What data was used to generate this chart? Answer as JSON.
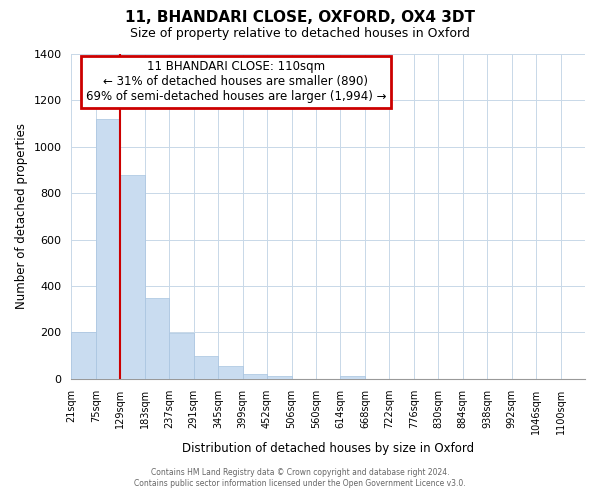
{
  "title": "11, BHANDARI CLOSE, OXFORD, OX4 3DT",
  "subtitle": "Size of property relative to detached houses in Oxford",
  "xlabel": "Distribution of detached houses by size in Oxford",
  "ylabel": "Number of detached properties",
  "bar_labels": [
    "21sqm",
    "75sqm",
    "129sqm",
    "183sqm",
    "237sqm",
    "291sqm",
    "345sqm",
    "399sqm",
    "452sqm",
    "506sqm",
    "560sqm",
    "614sqm",
    "668sqm",
    "722sqm",
    "776sqm",
    "830sqm",
    "884sqm",
    "938sqm",
    "992sqm",
    "1046sqm",
    "1100sqm"
  ],
  "bar_heights": [
    200,
    1120,
    880,
    350,
    195,
    100,
    55,
    20,
    12,
    0,
    0,
    10,
    0,
    0,
    0,
    0,
    0,
    0,
    0,
    0,
    0
  ],
  "bar_color": "#c9dcf0",
  "bar_edge_color": "#a8c4e0",
  "ylim": [
    0,
    1400
  ],
  "yticks": [
    0,
    200,
    400,
    600,
    800,
    1000,
    1200,
    1400
  ],
  "annotation_title": "11 BHANDARI CLOSE: 110sqm",
  "annotation_line1": "← 31% of detached houses are smaller (890)",
  "annotation_line2": "69% of semi-detached houses are larger (1,994) →",
  "annotation_box_color": "#ffffff",
  "annotation_box_edge": "#cc0000",
  "vline_color": "#cc0000",
  "vline_x": 2.0,
  "footer1": "Contains HM Land Registry data © Crown copyright and database right 2024.",
  "footer2": "Contains public sector information licensed under the Open Government Licence v3.0."
}
